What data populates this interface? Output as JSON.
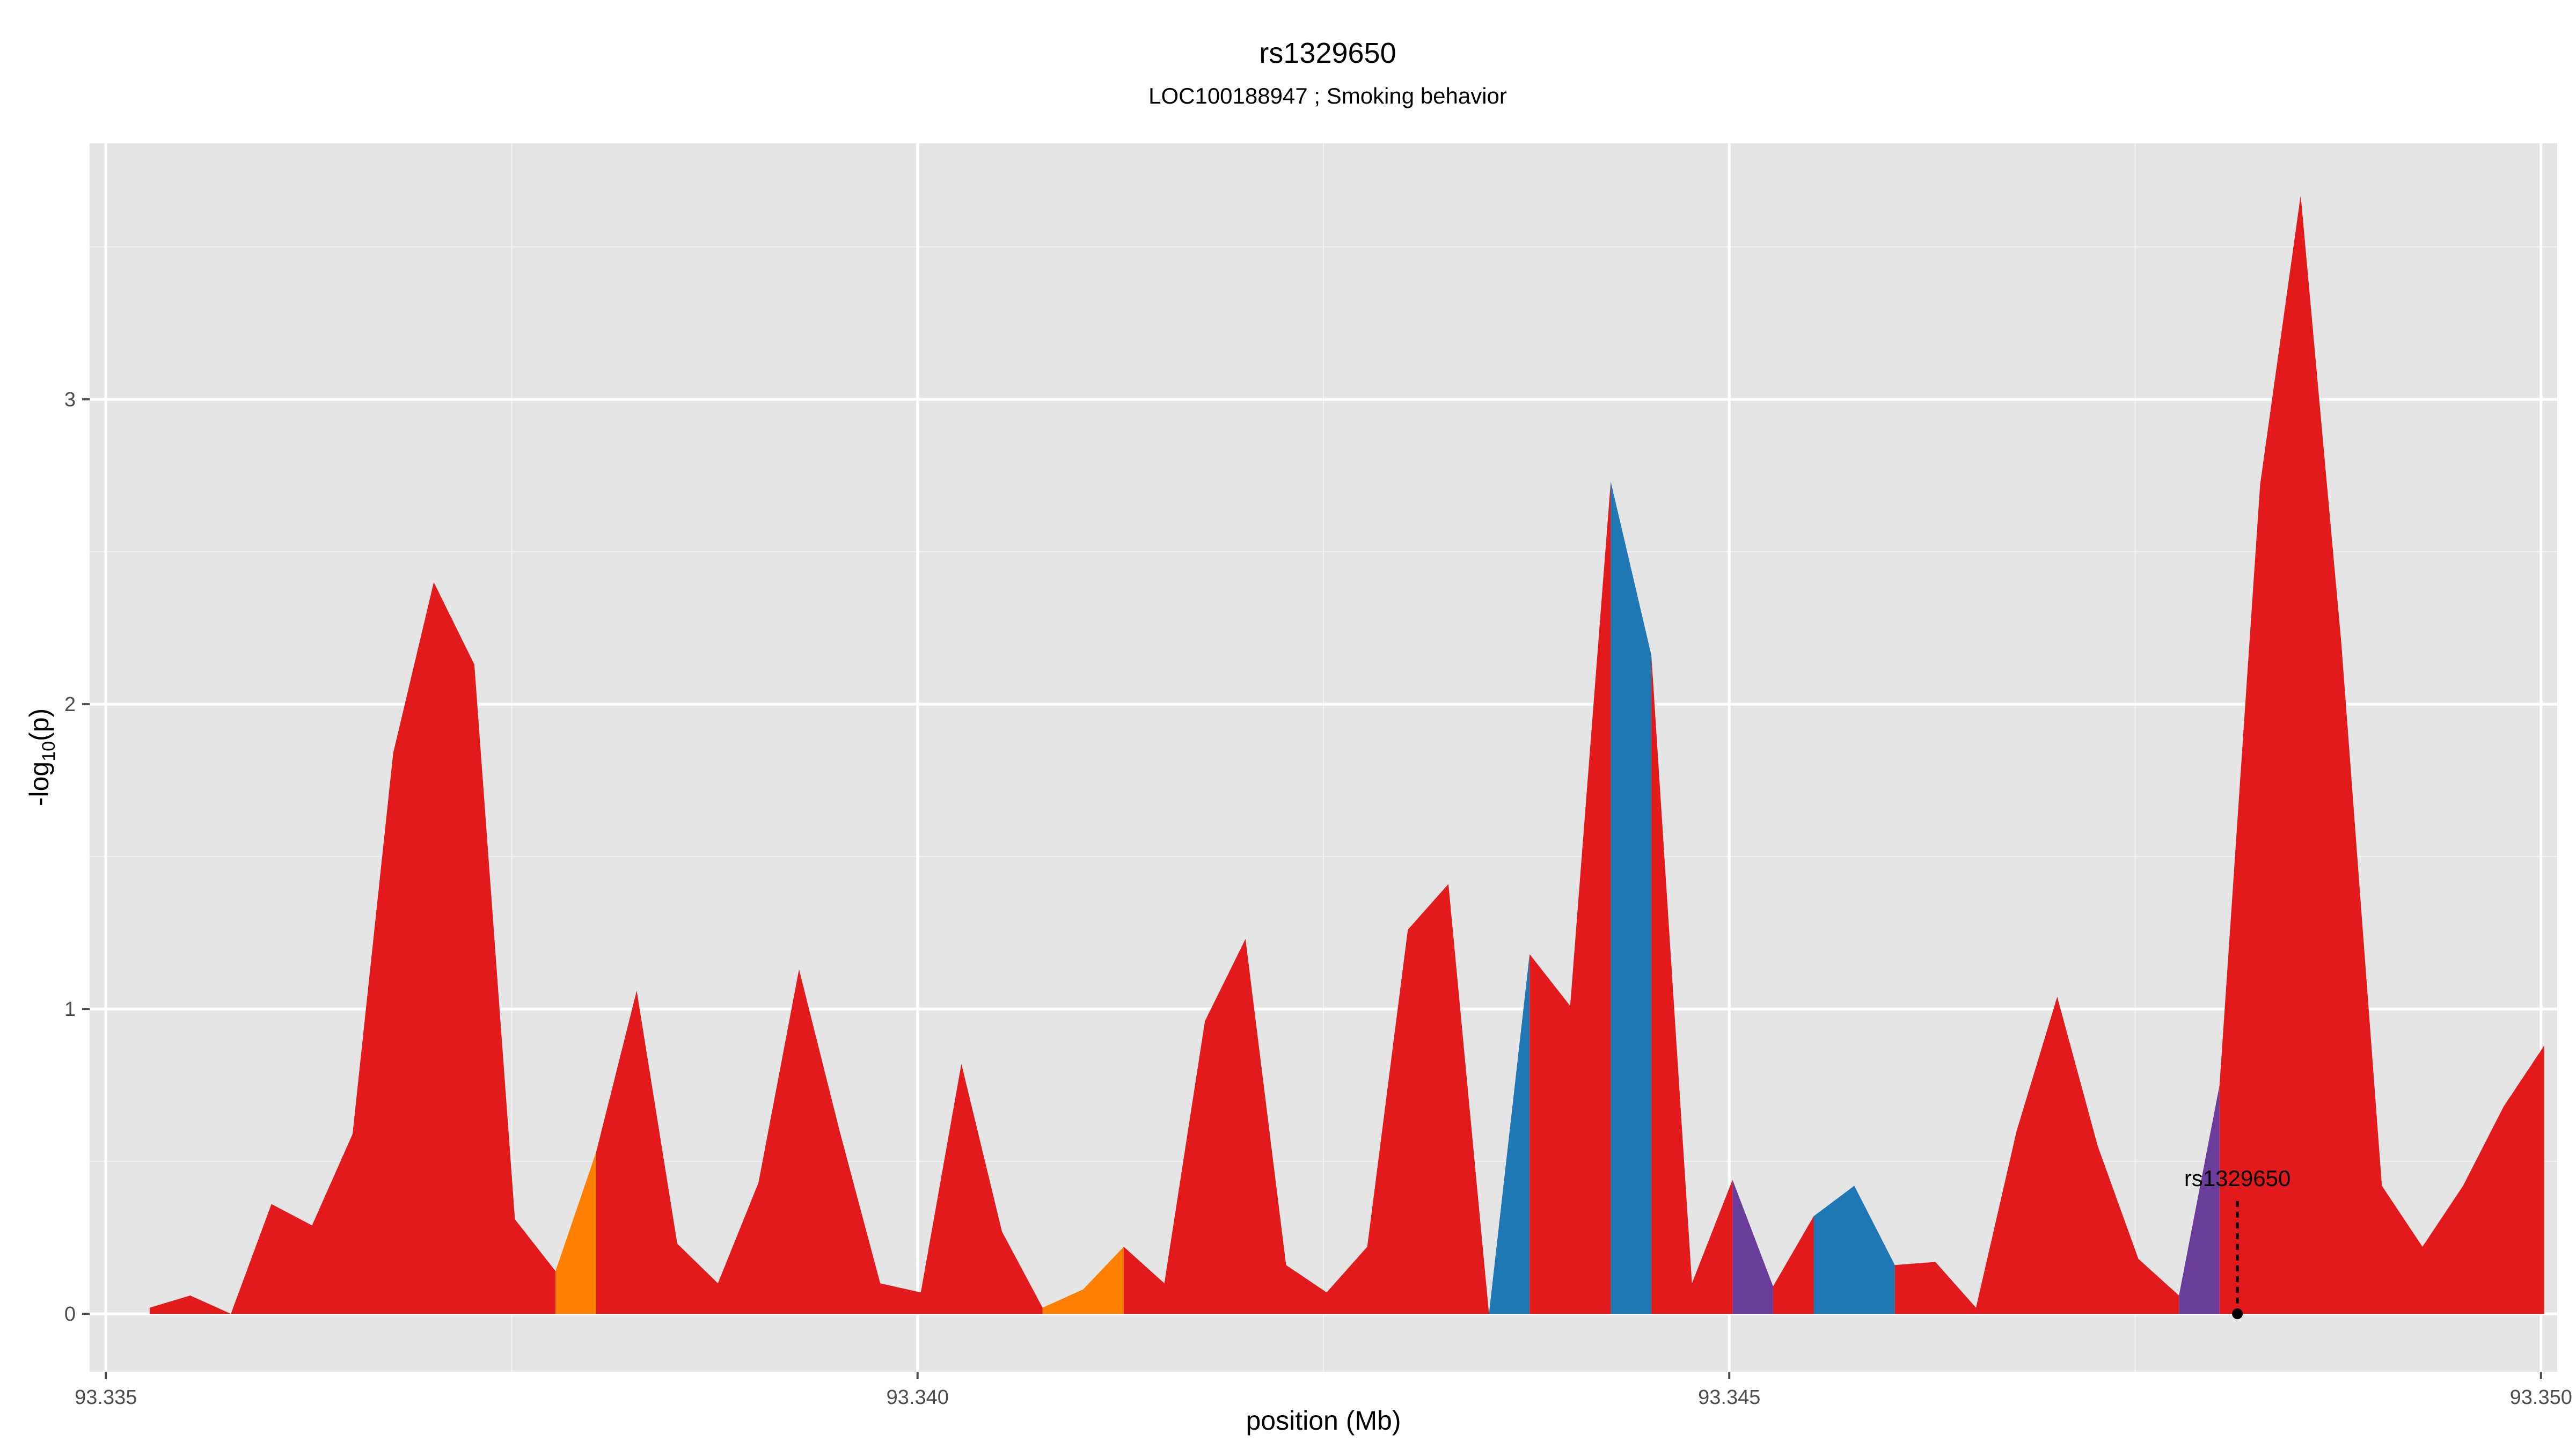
{
  "chart_data": {
    "type": "area",
    "title": "rs1329650",
    "subtitle": "LOC100188947 ; Smoking behavior",
    "xlabel": "position (Mb)",
    "ylabel": "-log10(p)",
    "xlim": [
      93.3349,
      93.3501
    ],
    "ylim": [
      -0.19,
      3.84
    ],
    "grid": true,
    "background": "#e5e5e5",
    "x_ticks": [
      {
        "value": 93.335,
        "label": "93.335"
      },
      {
        "value": 93.34,
        "label": "93.340"
      },
      {
        "value": 93.345,
        "label": "93.345"
      },
      {
        "value": 93.35,
        "label": "93.350"
      }
    ],
    "y_ticks": [
      {
        "value": 0,
        "label": "0"
      },
      {
        "value": 1,
        "label": "1"
      },
      {
        "value": 2,
        "label": "2"
      },
      {
        "value": 3,
        "label": "3"
      }
    ],
    "colors": {
      "red": "#e31a1c",
      "orange": "#ff7f00",
      "blue": "#1f78b4",
      "purple": "#6a3d9a"
    },
    "series": [
      {
        "color": "red",
        "x": [
          93.33527,
          93.33552,
          93.33577
        ],
        "y": [
          0.02,
          0.06,
          0.0
        ]
      },
      {
        "color": "red",
        "x": [
          93.33577,
          93.33602,
          93.33627,
          93.33652,
          93.33677,
          93.33702,
          93.33727,
          93.33752,
          93.33777
        ],
        "y": [
          0.0,
          0.36,
          0.29,
          0.59,
          1.84,
          2.4,
          2.13,
          0.31,
          0.14
        ]
      },
      {
        "color": "orange",
        "x": [
          93.33777,
          93.33802
        ],
        "y": [
          0.14,
          0.53
        ]
      },
      {
        "color": "red",
        "x": [
          93.33802,
          93.33827,
          93.33852,
          93.33877,
          93.33902,
          93.33927,
          93.33952,
          93.33977,
          93.34002,
          93.34027,
          93.34052,
          93.34077
        ],
        "y": [
          0.53,
          1.06,
          0.23,
          0.1,
          0.43,
          1.13,
          0.6,
          0.1,
          0.07,
          0.82,
          0.27,
          0.02
        ]
      },
      {
        "color": "orange",
        "x": [
          93.34077,
          93.34102,
          93.34127
        ],
        "y": [
          0.02,
          0.08,
          0.22
        ]
      },
      {
        "color": "red",
        "x": [
          93.34127,
          93.34152,
          93.34177,
          93.34202,
          93.34227,
          93.34252,
          93.34277,
          93.34302,
          93.34327,
          93.34352
        ],
        "y": [
          0.22,
          0.1,
          0.96,
          1.23,
          0.16,
          0.07,
          0.22,
          1.26,
          1.41,
          0.0
        ]
      },
      {
        "color": "blue",
        "x": [
          93.34352,
          93.34377
        ],
        "y": [
          0.0,
          1.18
        ]
      },
      {
        "color": "red",
        "x": [
          93.34377,
          93.34402,
          93.34427
        ],
        "y": [
          1.18,
          1.01,
          2.73
        ]
      },
      {
        "color": "blue",
        "x": [
          93.34427,
          93.34452
        ],
        "y": [
          2.73,
          2.16
        ]
      },
      {
        "color": "red",
        "x": [
          93.34452,
          93.34477,
          93.34502
        ],
        "y": [
          2.16,
          0.1,
          0.44
        ]
      },
      {
        "color": "purple",
        "x": [
          93.34502,
          93.34527
        ],
        "y": [
          0.44,
          0.09
        ]
      },
      {
        "color": "red",
        "x": [
          93.34527,
          93.34552
        ],
        "y": [
          0.09,
          0.32
        ]
      },
      {
        "color": "blue",
        "x": [
          93.34552,
          93.34577,
          93.34602
        ],
        "y": [
          0.32,
          0.42,
          0.16
        ]
      },
      {
        "color": "red",
        "x": [
          93.34602,
          93.34627,
          93.34652,
          93.34677,
          93.34702,
          93.34727,
          93.34752,
          93.34777
        ],
        "y": [
          0.16,
          0.17,
          0.02,
          0.6,
          1.04,
          0.55,
          0.18,
          0.06
        ]
      },
      {
        "color": "purple",
        "x": [
          93.34777,
          93.34802
        ],
        "y": [
          0.06,
          0.75
        ]
      },
      {
        "color": "red",
        "x": [
          93.34802,
          93.34827,
          93.34852,
          93.34877,
          93.34902,
          93.34927,
          93.34952,
          93.34977,
          93.35002
        ],
        "y": [
          0.75,
          2.72,
          3.67,
          2.2,
          0.42,
          0.22,
          0.42,
          0.68,
          0.88
        ]
      }
    ],
    "annotation": {
      "label": "rs1329650",
      "x": 93.34813,
      "y": 0.0,
      "top": 0.37
    }
  }
}
